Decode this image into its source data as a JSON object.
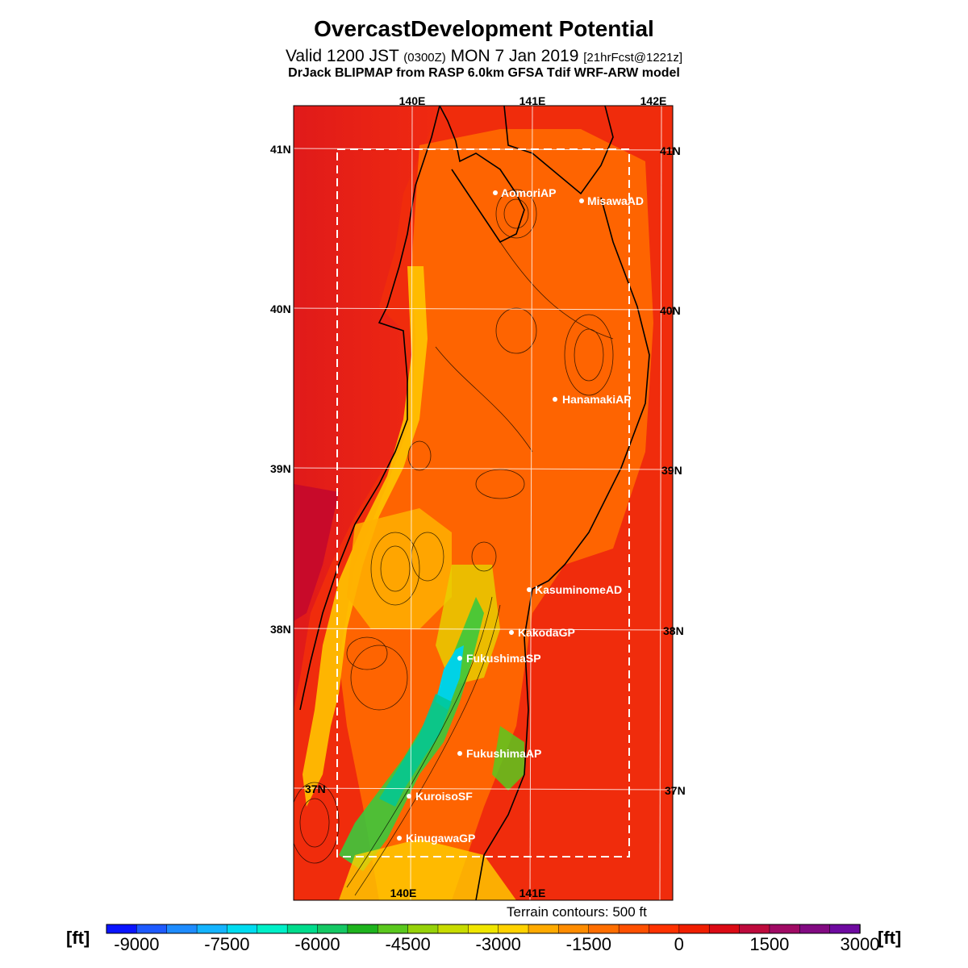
{
  "header": {
    "title": "OvercastDevelopment Potential",
    "valid_prefix": "Valid 1200 JST",
    "valid_utc": "(0300Z)",
    "valid_date": "MON 7 Jan 2019",
    "forecast": "[21hrFcst@1221z]",
    "subtitle": "DrJack BLIPMAP from RASP 6.0km GFSA Tdif WRF-ARW model"
  },
  "map": {
    "lon_labels_top": [
      "140E",
      "141E",
      "142E"
    ],
    "lon_labels_bottom": [
      "140E",
      "141E"
    ],
    "lat_labels_left": [
      "41N",
      "40N",
      "39N",
      "38N",
      "37N"
    ],
    "lat_labels_right": [
      "41N",
      "40N",
      "39N",
      "38N",
      "37N"
    ],
    "stations": [
      {
        "name": "AomoriAP"
      },
      {
        "name": "MisawaAD"
      },
      {
        "name": "HanamakiAP"
      },
      {
        "name": "KasuminomeAD"
      },
      {
        "name": "KakodaGP"
      },
      {
        "name": "FukushimaSP"
      },
      {
        "name": "FukushimaAP"
      },
      {
        "name": "KuroisoSF"
      },
      {
        "name": "KinugawaGP"
      }
    ],
    "terrain_note": "Terrain contours: 500 ft"
  },
  "colorbar": {
    "unit_left": "[ft]",
    "unit_right": "[ft]",
    "tick_labels": [
      "-9000",
      "-7500",
      "-6000",
      "-4500",
      "-3000",
      "-1500",
      "0",
      "1500",
      "3000"
    ],
    "colors": [
      "#0a14ff",
      "#1e5aff",
      "#1e8cff",
      "#14b4ff",
      "#00dcf0",
      "#00f0c8",
      "#00dc8c",
      "#14c864",
      "#1eb41e",
      "#5ac81e",
      "#96d20a",
      "#c8dc00",
      "#f0e600",
      "#ffd200",
      "#ffaa00",
      "#ff8c00",
      "#ff6e00",
      "#ff5000",
      "#ff3200",
      "#f01e00",
      "#dc0a14",
      "#be0a3c",
      "#a00a64",
      "#820a82",
      "#6e0aa0"
    ]
  }
}
